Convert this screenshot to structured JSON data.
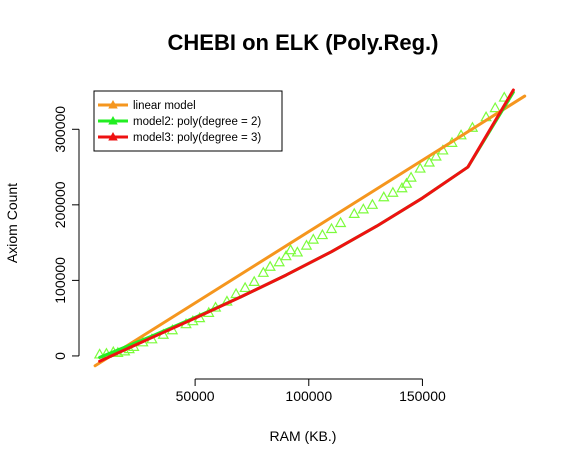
{
  "chart_data": {
    "type": "scatter",
    "title": "CHEBI on ELK (Poly.Reg.)",
    "xlabel": "RAM (KB.)",
    "ylabel": "Axiom Count",
    "xlim": [
      2000,
      196000
    ],
    "ylim": [
      -12000,
      352000
    ],
    "x_ticks": [
      50000,
      100000,
      150000
    ],
    "x_tick_labels": [
      "50000",
      "100000",
      "150000"
    ],
    "y_ticks": [
      0,
      100000,
      200000,
      300000
    ],
    "y_tick_labels": [
      "0",
      "100000",
      "200000",
      "300000"
    ],
    "grid": false,
    "legend_position": "top-left",
    "legend": [
      {
        "label": "linear model",
        "color": "#f5961e"
      },
      {
        "label": "model2: poly(degree = 2)",
        "color": "#22ee22"
      },
      {
        "label": "model3: poly(degree = 3)",
        "color": "#ee1111"
      }
    ],
    "points": {
      "marker": "open-triangle",
      "color": "#7cfc3c",
      "x": [
        8000,
        11000,
        14000,
        16000,
        19000,
        21000,
        23000,
        27000,
        31000,
        36000,
        40000,
        46000,
        49000,
        52000,
        56000,
        59000,
        64000,
        68000,
        72000,
        76000,
        80000,
        83000,
        87000,
        90000,
        92000,
        95000,
        99000,
        102000,
        106000,
        110000,
        114000,
        120000,
        124000,
        128000,
        133000,
        137000,
        141000,
        143000,
        145000,
        149000,
        153000,
        156000,
        159000,
        163000,
        167000,
        172000,
        178000,
        182000,
        186000
      ],
      "y": [
        2000,
        3000,
        5000,
        4000,
        6000,
        9000,
        12000,
        18000,
        22000,
        28000,
        34000,
        42000,
        46000,
        50000,
        57000,
        64000,
        72000,
        82000,
        90000,
        98000,
        110000,
        118000,
        124000,
        132000,
        140000,
        137000,
        146000,
        154000,
        160000,
        168000,
        176000,
        188000,
        194000,
        200000,
        210000,
        216000,
        222000,
        228000,
        236000,
        248000,
        256000,
        264000,
        272000,
        282000,
        292000,
        302000,
        316000,
        328000,
        342000
      ]
    },
    "series": [
      {
        "name": "linear model",
        "color": "#f5961e",
        "x": [
          6000,
          195000
        ],
        "y": [
          -13000,
          344000
        ]
      },
      {
        "name": "model2: poly(degree = 2)",
        "color": "#22ee22",
        "x": [
          8000,
          30000,
          50000,
          70000,
          90000,
          110000,
          130000,
          150000,
          170000,
          190000
        ],
        "y": [
          -2000,
          25000,
          51000,
          78000,
          107000,
          138000,
          172000,
          209000,
          250000,
          349000
        ]
      },
      {
        "name": "model3: poly(degree = 3)",
        "color": "#ee1111",
        "x": [
          8000,
          30000,
          50000,
          70000,
          90000,
          110000,
          130000,
          150000,
          170000,
          190000
        ],
        "y": [
          -7000,
          23000,
          50000,
          78000,
          107000,
          138000,
          172000,
          209000,
          250000,
          352000
        ]
      }
    ]
  }
}
